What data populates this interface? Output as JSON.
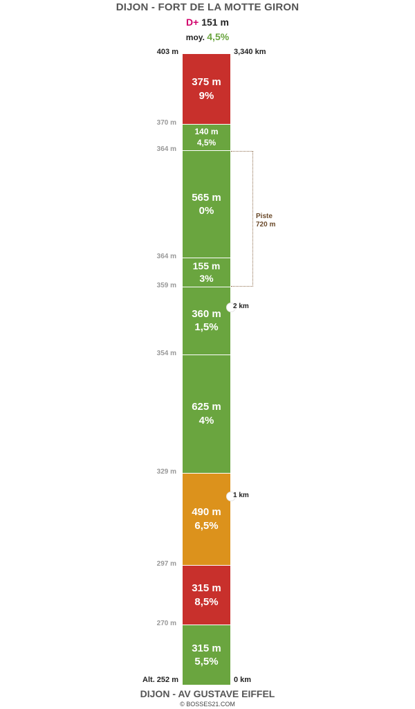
{
  "header": {
    "title": "DIJON - FORT DE LA MOTTE GIRON",
    "dplus_label": "D+",
    "dplus_value": "151 m",
    "avg_label": "moy.",
    "avg_value": "4,5%"
  },
  "top": {
    "altitude": "403 m",
    "distance": "3,340 km"
  },
  "bottom": {
    "altitude": "Alt. 252 m",
    "distance": "0 km"
  },
  "footer": {
    "title": "DIJON - AV GUSTAVE EIFFEL",
    "credit": "© BOSSES21.COM"
  },
  "colors": {
    "green": "#6aa53f",
    "orange": "#dc921c",
    "red": "#c8302c"
  },
  "segments": [
    {
      "length": "375 m",
      "grade": "9%",
      "length_m": 375,
      "color": "red",
      "font": 15
    },
    {
      "length": "140 m",
      "grade": "4,5%",
      "length_m": 140,
      "color": "green",
      "font": 12
    },
    {
      "length": "565 m",
      "grade": "0%",
      "length_m": 565,
      "color": "green",
      "font": 15
    },
    {
      "length": "155 m",
      "grade": "3%",
      "length_m": 155,
      "color": "green",
      "font": 14
    },
    {
      "length": "360 m",
      "grade": "1,5%",
      "length_m": 360,
      "color": "green",
      "font": 15
    },
    {
      "length": "625 m",
      "grade": "4%",
      "length_m": 625,
      "color": "green",
      "font": 15
    },
    {
      "length": "490 m",
      "grade": "6,5%",
      "length_m": 490,
      "color": "orange",
      "font": 15
    },
    {
      "length": "315 m",
      "grade": "8,5%",
      "length_m": 315,
      "color": "red",
      "font": 15
    },
    {
      "length": "315 m",
      "grade": "5,5%",
      "length_m": 315,
      "color": "green",
      "font": 15
    }
  ],
  "altitude_ticks": [
    "370 m",
    "364 m",
    "364 m",
    "359 m",
    "354 m",
    "329 m",
    "297 m",
    "270 m"
  ],
  "km_markers": [
    {
      "label": "2 km",
      "km": 2
    },
    {
      "label": "1 km",
      "km": 1
    }
  ],
  "total_km": 3.34,
  "piste": {
    "label": "Piste",
    "length": "720 m"
  }
}
